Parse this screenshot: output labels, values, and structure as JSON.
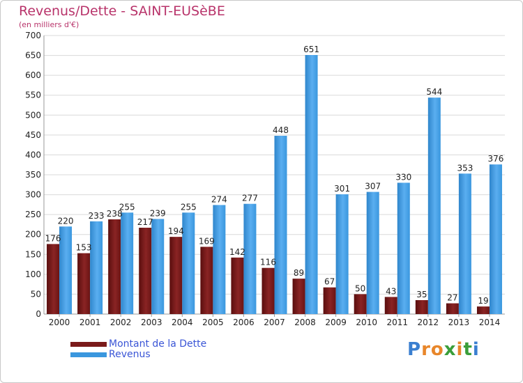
{
  "title": "Revenus/Dette - SAINT-EUSèBE",
  "subtitle": "(en milliers d'€)",
  "logo": {
    "letters": [
      "P",
      "r",
      "o",
      "x",
      "i",
      "t",
      "i"
    ],
    "colors": [
      "#3a7fd0",
      "#e8862a",
      "#e8862a",
      "#3a9e3a",
      "#e8862a",
      "#3a9e3a",
      "#3a7fd0"
    ]
  },
  "colors": {
    "dette": "#7a1a1a",
    "revenus": "#3a97de",
    "grid": "#d9d9d9",
    "axis_text": "#222222"
  },
  "chart_data": {
    "type": "bar",
    "categories": [
      "2000",
      "2001",
      "2002",
      "2003",
      "2004",
      "2005",
      "2006",
      "2007",
      "2008",
      "2009",
      "2010",
      "2011",
      "2012",
      "2013",
      "2014"
    ],
    "series": [
      {
        "name": "Montant de la Dette",
        "values": [
          176,
          153,
          238,
          217,
          194,
          169,
          142,
          116,
          89,
          67,
          50,
          43,
          35,
          27,
          19
        ]
      },
      {
        "name": "Revenus",
        "values": [
          220,
          233,
          255,
          239,
          255,
          274,
          277,
          448,
          651,
          301,
          307,
          330,
          544,
          353,
          376
        ]
      }
    ],
    "ylim": [
      0,
      700
    ],
    "yticks": [
      0,
      50,
      100,
      150,
      200,
      250,
      300,
      350,
      400,
      450,
      500,
      550,
      600,
      650,
      700
    ],
    "grid": true,
    "legend": "bottom-left"
  }
}
